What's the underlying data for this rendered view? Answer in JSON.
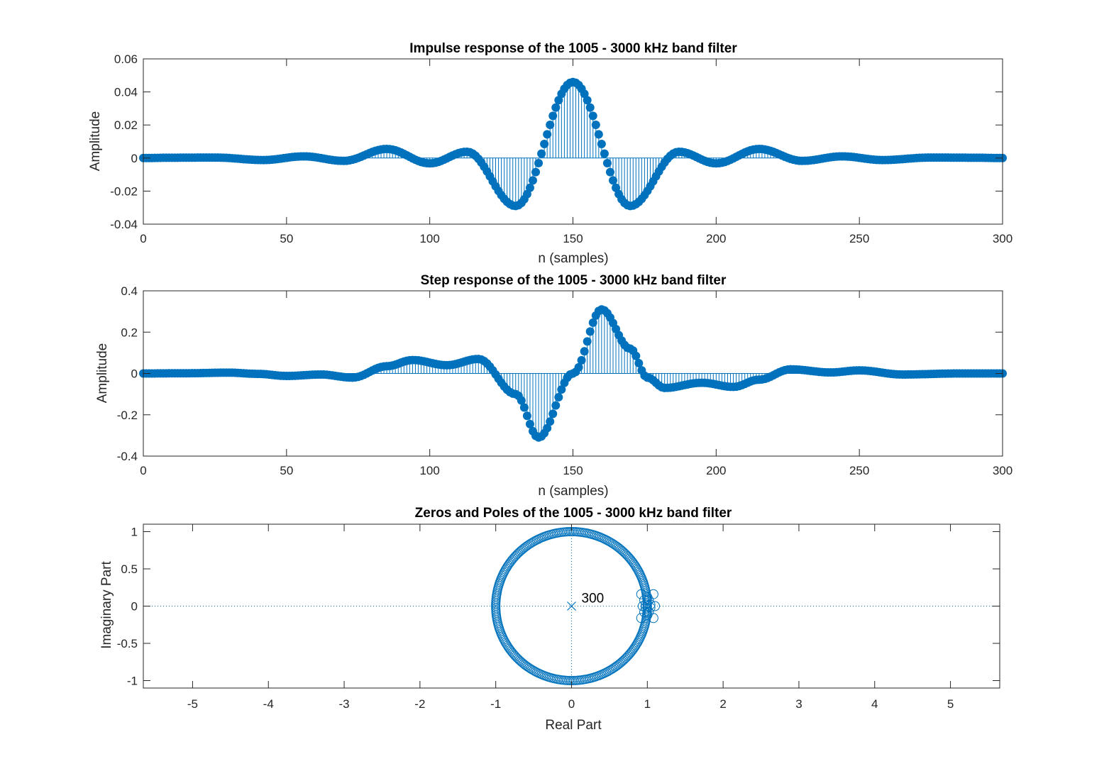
{
  "colors": {
    "series": "#0072bd",
    "axes": "#262626",
    "background": "#ffffff"
  },
  "chart_data": [
    {
      "type": "stem",
      "title": "Impulse response of the 1005 - 3000 kHz band filter",
      "xlabel": "n (samples)",
      "ylabel": "Amplitude",
      "xlim": [
        0,
        300
      ],
      "ylim": [
        -0.04,
        0.06
      ],
      "xticks": [
        "0",
        "50",
        "100",
        "150",
        "200",
        "250",
        "300"
      ],
      "yticks": [
        "-0.04",
        "-0.02",
        "0",
        "0.02",
        "0.04",
        "0.06"
      ],
      "marker": "filled-circle",
      "samples": 301,
      "series": [
        {
          "key_points": [
            [
              0,
              0
            ],
            [
              10,
              0.0002
            ],
            [
              25,
              0.0003
            ],
            [
              42,
              -0.0012
            ],
            [
              56,
              0.001
            ],
            [
              70,
              -0.0017
            ],
            [
              85,
              0.0055
            ],
            [
              100,
              -0.0032
            ],
            [
              113,
              0.0038
            ],
            [
              130,
              -0.029
            ],
            [
              150,
              0.046
            ],
            [
              170,
              -0.029
            ],
            [
              187,
              0.0038
            ],
            [
              200,
              -0.0032
            ],
            [
              215,
              0.0055
            ],
            [
              230,
              -0.0017
            ],
            [
              244,
              0.001
            ],
            [
              258,
              -0.0012
            ],
            [
              275,
              0.0003
            ],
            [
              290,
              0.0002
            ],
            [
              300,
              0
            ]
          ]
        }
      ]
    },
    {
      "type": "stem",
      "title": "Step response of the 1005 - 3000 kHz band filter",
      "xlabel": "n (samples)",
      "ylabel": "Amplitude",
      "xlim": [
        0,
        300
      ],
      "ylim": [
        -0.4,
        0.4
      ],
      "xticks": [
        "0",
        "50",
        "100",
        "150",
        "200",
        "250",
        "300"
      ],
      "yticks": [
        "-0.4",
        "-0.2",
        "0",
        "0.2",
        "0.4"
      ],
      "marker": "filled-circle",
      "samples": 301,
      "series": [
        {
          "key_points": [
            [
              0,
              0
            ],
            [
              15,
              0.001
            ],
            [
              30,
              0.004
            ],
            [
              40,
              -0.002
            ],
            [
              50,
              -0.012
            ],
            [
              62,
              -0.005
            ],
            [
              73,
              -0.02
            ],
            [
              85,
              0.035
            ],
            [
              94,
              0.065
            ],
            [
              106,
              0.04
            ],
            [
              117,
              0.07
            ],
            [
              130,
              -0.1
            ],
            [
              138,
              -0.31
            ],
            [
              150,
              0.0
            ],
            [
              160,
              0.31
            ],
            [
              170,
              0.12
            ],
            [
              176,
              -0.02
            ],
            [
              182,
              -0.07
            ],
            [
              195,
              -0.045
            ],
            [
              206,
              -0.065
            ],
            [
              215,
              -0.03
            ],
            [
              226,
              0.02
            ],
            [
              240,
              0.005
            ],
            [
              250,
              0.015
            ],
            [
              265,
              -0.005
            ],
            [
              285,
              0.0
            ],
            [
              300,
              0
            ]
          ]
        }
      ]
    },
    {
      "type": "scatter",
      "title": "Zeros and Poles of the 1005 - 3000 kHz band filter",
      "xlabel": "Real Part",
      "ylabel": "Imaginary Part",
      "xlim": [
        -5.65,
        5.65
      ],
      "ylim": [
        -1.1,
        1.1
      ],
      "xticks": [
        "-5",
        "-4",
        "-3",
        "-2",
        "-1",
        "0",
        "1",
        "2",
        "3",
        "4",
        "5"
      ],
      "yticks": [
        "-1",
        "-0.5",
        "0",
        "0.5",
        "1"
      ],
      "zeros": {
        "on_unit_circle_count": 270,
        "near_one": [
          [
            1.08,
            0.16
          ],
          [
            1.08,
            -0.16
          ],
          [
            0.92,
            0.16
          ],
          [
            0.92,
            -0.16
          ],
          [
            1.1,
            0.0
          ],
          [
            0.94,
            0.0
          ],
          [
            1.02,
            0.08
          ],
          [
            1.02,
            -0.08
          ],
          [
            0.96,
            0.08
          ],
          [
            0.96,
            -0.08
          ],
          [
            1.0,
            0.12
          ],
          [
            1.0,
            -0.12
          ],
          [
            1.04,
            0.02
          ],
          [
            1.04,
            -0.02
          ],
          [
            0.98,
            0.02
          ],
          [
            0.98,
            -0.02
          ]
        ]
      },
      "poles": [
        [
          0,
          0
        ]
      ],
      "pole_multiplicity_label": "300"
    }
  ]
}
